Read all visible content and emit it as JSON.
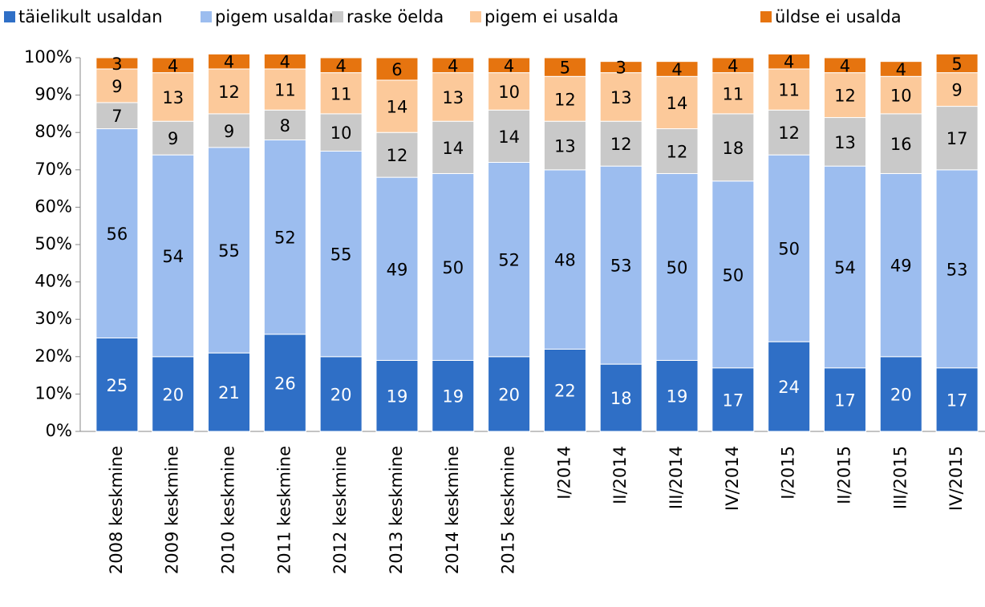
{
  "chart_data": {
    "type": "stacked_bar",
    "categories": [
      "2008 keskmine",
      "2009 keskmine",
      "2010 keskmine",
      "2011 keskmine",
      "2012 keskmine",
      "2013 keskmine",
      "2014 keskmine",
      "2015 keskmine",
      "I/2014",
      "II/2014",
      "III/2014",
      "IV/2014",
      "I/2015",
      "II/2015",
      "III/2015",
      "IV/2015"
    ],
    "series": [
      {
        "name": "täielikult usaldan",
        "color": "#2f6fc6",
        "values": [
          25,
          20,
          21,
          26,
          20,
          19,
          19,
          20,
          22,
          18,
          19,
          17,
          24,
          17,
          20,
          17
        ]
      },
      {
        "name": "pigem usaldan",
        "color": "#9cbdef",
        "values": [
          56,
          54,
          55,
          52,
          55,
          49,
          50,
          52,
          48,
          53,
          50,
          50,
          50,
          54,
          49,
          53
        ]
      },
      {
        "name": "raske öelda",
        "color": "#c9c9c9",
        "values": [
          7,
          9,
          9,
          8,
          10,
          12,
          14,
          14,
          13,
          12,
          12,
          18,
          12,
          13,
          16,
          17
        ]
      },
      {
        "name": "pigem ei usalda",
        "color": "#fcc99a",
        "values": [
          9,
          13,
          12,
          11,
          11,
          14,
          13,
          10,
          12,
          13,
          14,
          11,
          11,
          12,
          10,
          9
        ]
      },
      {
        "name": "üldse ei usalda",
        "color": "#e6740f",
        "values": [
          3,
          4,
          4,
          4,
          4,
          6,
          4,
          4,
          5,
          3,
          4,
          4,
          4,
          4,
          4,
          5
        ]
      }
    ],
    "ylim": [
      0,
      100
    ],
    "yticks": [
      {
        "value": 0,
        "label": "0%"
      },
      {
        "value": 10,
        "label": "10%"
      },
      {
        "value": 20,
        "label": "20%"
      },
      {
        "value": 30,
        "label": "30%"
      },
      {
        "value": 40,
        "label": "40%"
      },
      {
        "value": 50,
        "label": "50%"
      },
      {
        "value": 60,
        "label": "60%"
      },
      {
        "value": 70,
        "label": "70%"
      },
      {
        "value": 80,
        "label": "80%"
      },
      {
        "value": 90,
        "label": "90%"
      },
      {
        "value": 100,
        "label": "100%"
      }
    ],
    "grid": false,
    "legend": "top"
  }
}
